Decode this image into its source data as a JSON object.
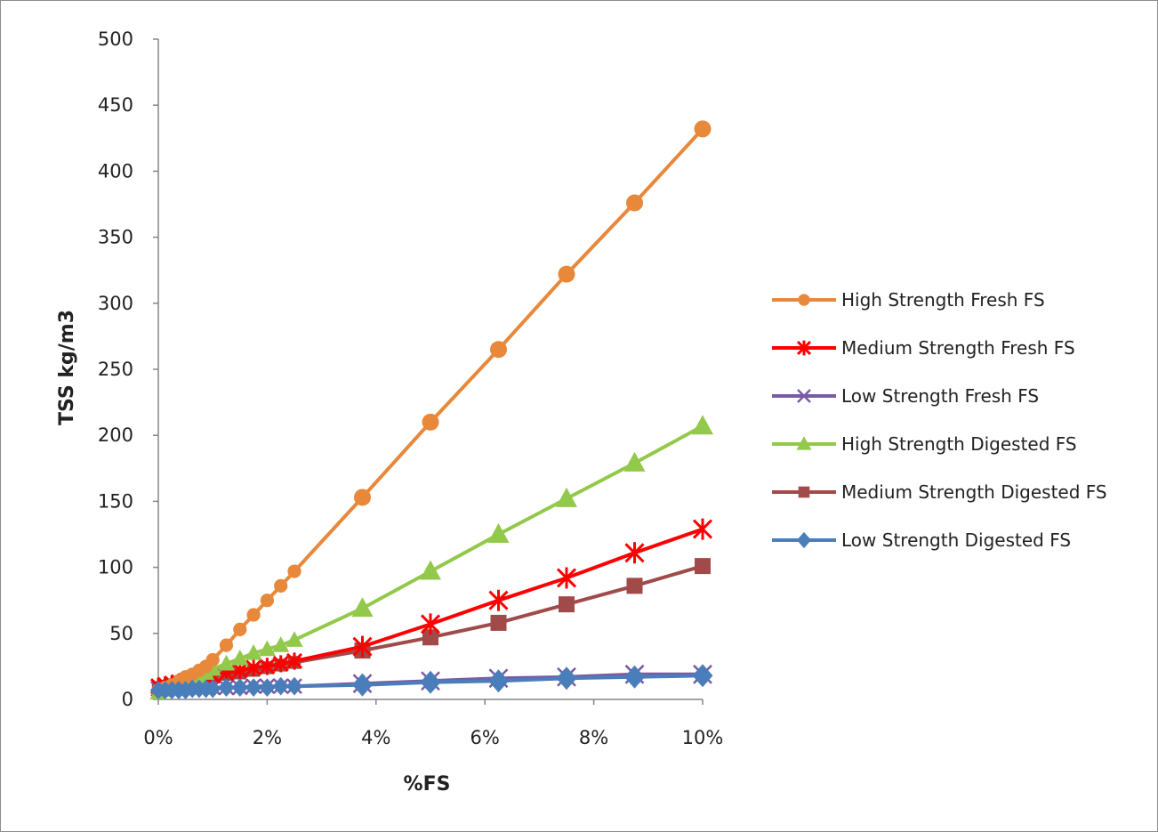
{
  "chart_data": {
    "type": "line",
    "title": "",
    "xlabel": "%FS",
    "ylabel": "TSS kg/m3",
    "xlim": [
      0,
      10
    ],
    "ylim": [
      0,
      500
    ],
    "x_ticks": [
      {
        "value": 0,
        "label": "0%"
      },
      {
        "value": 2,
        "label": "2%"
      },
      {
        "value": 4,
        "label": "4%"
      },
      {
        "value": 6,
        "label": "6%"
      },
      {
        "value": 8,
        "label": "8%"
      },
      {
        "value": 10,
        "label": "10%"
      }
    ],
    "y_ticks": [
      0,
      50,
      100,
      150,
      200,
      250,
      300,
      350,
      400,
      450,
      500
    ],
    "grid": false,
    "legend_position": "right",
    "series": [
      {
        "name": "High Strength Fresh FS",
        "color": "#E8883A",
        "marker": "circle",
        "x": [
          0,
          0.125,
          0.25,
          0.375,
          0.5,
          0.625,
          0.75,
          0.875,
          1,
          1.25,
          1.5,
          1.75,
          2,
          2.25,
          2.5,
          3.75,
          5,
          6.25,
          7.5,
          8.75,
          10
        ],
        "y": [
          7,
          9,
          11,
          14,
          17,
          19,
          22,
          25,
          30,
          41,
          53,
          64,
          75,
          86,
          97,
          153,
          210,
          265,
          322,
          376,
          432
        ]
      },
      {
        "name": "Medium Strength Fresh FS",
        "color": "#FF0000",
        "marker": "star",
        "x": [
          0,
          0.125,
          0.25,
          0.375,
          0.5,
          0.625,
          0.75,
          0.875,
          1,
          1.25,
          1.5,
          1.75,
          2,
          2.25,
          2.5,
          3.75,
          5,
          6.25,
          7.5,
          8.75,
          10
        ],
        "y": [
          10,
          11,
          12,
          13,
          14,
          15,
          16,
          17,
          18,
          20,
          22,
          24,
          25,
          27,
          29,
          40,
          57,
          75,
          92,
          111,
          129
        ]
      },
      {
        "name": "Low Strength Fresh FS",
        "color": "#7B5AA6",
        "marker": "x",
        "x": [
          0,
          0.125,
          0.25,
          0.375,
          0.5,
          0.625,
          0.75,
          0.875,
          1,
          1.25,
          1.5,
          1.75,
          2,
          2.25,
          2.5,
          3.75,
          5,
          6.25,
          7.5,
          8.75,
          10
        ],
        "y": [
          8,
          8,
          8,
          8,
          8,
          8,
          8,
          9,
          9,
          9,
          9,
          10,
          10,
          10,
          10,
          12,
          14,
          16,
          17,
          19,
          19
        ]
      },
      {
        "name": "High Strength Digested FS",
        "color": "#92C94A",
        "marker": "triangle",
        "x": [
          0,
          0.125,
          0.25,
          0.375,
          0.5,
          0.625,
          0.75,
          0.875,
          1,
          1.25,
          1.5,
          1.75,
          2,
          2.25,
          2.5,
          3.75,
          5,
          6.25,
          7.5,
          8.75,
          10
        ],
        "y": [
          5,
          7,
          9,
          11,
          13,
          15,
          17,
          20,
          23,
          27,
          31,
          35,
          38,
          41,
          45,
          69,
          97,
          125,
          152,
          179,
          207
        ]
      },
      {
        "name": "Medium Strength Digested FS",
        "color": "#A04A4A",
        "marker": "square",
        "x": [
          0,
          0.125,
          0.25,
          0.375,
          0.5,
          0.625,
          0.75,
          0.875,
          1,
          1.25,
          1.5,
          1.75,
          2,
          2.25,
          2.5,
          3.75,
          5,
          6.25,
          7.5,
          8.75,
          10
        ],
        "y": [
          9,
          10,
          11,
          12,
          13,
          14,
          15,
          16,
          17,
          19,
          20,
          22,
          24,
          26,
          28,
          37,
          47,
          58,
          72,
          86,
          101
        ]
      },
      {
        "name": "Low Strength Digested FS",
        "color": "#4A7EBB",
        "marker": "diamond",
        "x": [
          0,
          0.125,
          0.25,
          0.375,
          0.5,
          0.625,
          0.75,
          0.875,
          1,
          1.25,
          1.5,
          1.75,
          2,
          2.25,
          2.5,
          3.75,
          5,
          6.25,
          7.5,
          8.75,
          10
        ],
        "y": [
          7,
          7,
          7,
          7,
          7,
          8,
          8,
          8,
          8,
          9,
          9,
          9,
          9,
          10,
          10,
          11,
          13,
          14,
          16,
          17,
          18
        ]
      }
    ]
  }
}
